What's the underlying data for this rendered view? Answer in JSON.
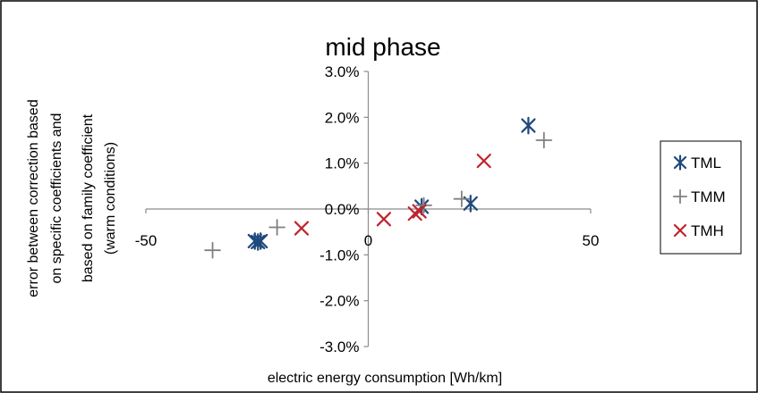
{
  "chart_data": {
    "type": "scatter",
    "title": "mid phase",
    "xlabel": "electric energy consumption [Wh/km]",
    "ylabel_lines": [
      "error between correction based",
      "on specific coefficients and",
      "based on family coefficient",
      "(warm conditions)"
    ],
    "xlim": [
      -50,
      50
    ],
    "ylim": [
      -3.0,
      3.0
    ],
    "x_ticks": [
      -50,
      0,
      50
    ],
    "x_tick_labels": [
      "-50",
      "0",
      "50"
    ],
    "y_ticks": [
      3.0,
      2.0,
      1.0,
      0.0,
      -1.0,
      -2.0,
      -3.0
    ],
    "y_tick_labels": [
      "3.0%",
      "2.0%",
      "1.0%",
      "0.0%",
      "-1.0%",
      "-2.0%",
      "-3.0%"
    ],
    "grid": false,
    "legend_position": "right",
    "series": [
      {
        "name": "TML",
        "marker": "asterisk",
        "color": "#1f497d",
        "points": [
          [
            -25.5,
            -0.7
          ],
          [
            -24.8,
            -0.72
          ],
          [
            -24.2,
            -0.7
          ],
          [
            12.0,
            0.05
          ],
          [
            23.0,
            0.12
          ],
          [
            36.0,
            1.82
          ]
        ]
      },
      {
        "name": "TMM",
        "marker": "plus",
        "color": "#808080",
        "points": [
          [
            -35.0,
            -0.9
          ],
          [
            -20.5,
            -0.4
          ],
          [
            12.5,
            0.08
          ],
          [
            21.0,
            0.22
          ],
          [
            39.5,
            1.5
          ]
        ]
      },
      {
        "name": "TMH",
        "marker": "x",
        "color": "#c0242c",
        "points": [
          [
            -15.0,
            -0.42
          ],
          [
            3.5,
            -0.22
          ],
          [
            10.5,
            -0.1
          ],
          [
            11.5,
            -0.05
          ],
          [
            26.0,
            1.05
          ]
        ]
      }
    ]
  }
}
